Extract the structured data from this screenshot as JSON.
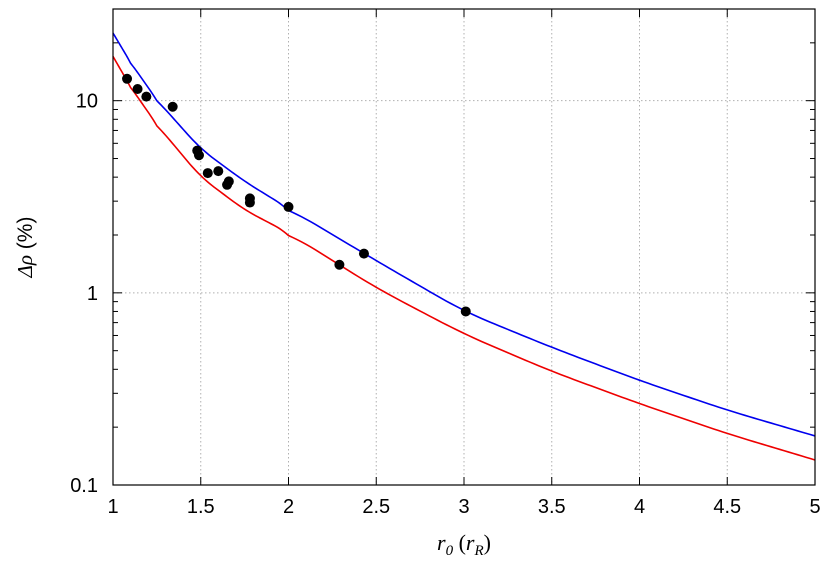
{
  "chart_data": {
    "type": "scatter",
    "xlabel": {
      "main": "r",
      "main_sub": "0",
      "open": " (",
      "unit": "r",
      "unit_sub": "R",
      "close": ")"
    },
    "ylabel": {
      "greek": "Δρ",
      "unit": " (%)"
    },
    "xlim": [
      1,
      5
    ],
    "ylim": [
      0.1,
      30
    ],
    "yscale": "log",
    "grid": true,
    "x_ticks": [
      1,
      1.5,
      2,
      2.5,
      3,
      3.5,
      4,
      4.5,
      5
    ],
    "x_tick_labels": [
      "1",
      "1.5",
      "2",
      "2.5",
      "3",
      "3.5",
      "4",
      "4.5",
      "5"
    ],
    "y_ticks": [
      0.1,
      1,
      10
    ],
    "y_tick_labels": [
      "0.1",
      "1",
      "10"
    ],
    "points": {
      "color": "#000000",
      "x": [
        1.08,
        1.14,
        1.19,
        1.34,
        1.48,
        1.49,
        1.54,
        1.6,
        1.65,
        1.66,
        1.78,
        1.78,
        2.0,
        2.29,
        2.43,
        3.01
      ],
      "y": [
        13.0,
        11.5,
        10.5,
        9.3,
        5.5,
        5.2,
        4.2,
        4.3,
        3.65,
        3.8,
        3.1,
        2.95,
        2.8,
        1.4,
        1.6,
        0.8
      ]
    },
    "curves": [
      {
        "color": "#0000ee",
        "x": [
          1.0,
          1.1,
          1.25,
          1.5,
          1.75,
          2.0,
          2.5,
          3.0,
          3.5,
          4.0,
          4.5,
          5.0
        ],
        "y": [
          22.5,
          15.8,
          10.1,
          5.6,
          3.8,
          2.75,
          1.47,
          0.8,
          0.52,
          0.35,
          0.245,
          0.18
        ]
      },
      {
        "color": "#ee0000",
        "x": [
          1.0,
          1.1,
          1.25,
          1.5,
          1.75,
          2.0,
          2.5,
          3.0,
          3.5,
          4.0,
          4.5,
          5.0
        ],
        "y": [
          17.0,
          11.8,
          7.5,
          4.0,
          2.7,
          2.05,
          1.06,
          0.61,
          0.39,
          0.265,
          0.185,
          0.135
        ]
      }
    ]
  }
}
